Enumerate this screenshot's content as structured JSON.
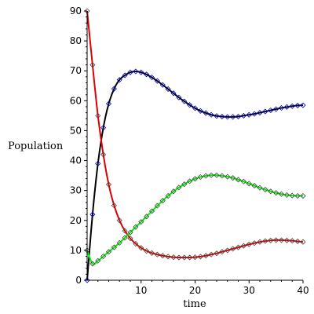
{
  "chart_data": {
    "type": "line",
    "title": "",
    "xlabel": "time",
    "ylabel": "Population",
    "xlim": [
      0,
      40
    ],
    "ylim": [
      0,
      90
    ],
    "xticks": [
      10,
      20,
      30,
      40
    ],
    "yticks": [
      0,
      10,
      20,
      30,
      40,
      50,
      60,
      70,
      80,
      90
    ],
    "grid": false,
    "legend": "none",
    "series": [
      {
        "color": "#000000",
        "marker_color": "#0000cc",
        "x": [
          0,
          1,
          2,
          3,
          4,
          5,
          6,
          7,
          8,
          9,
          10,
          11,
          12,
          13,
          14,
          15,
          16,
          17,
          18,
          19,
          20,
          21,
          22,
          23,
          24,
          25,
          26,
          27,
          28,
          29,
          30,
          31,
          32,
          33,
          34,
          35,
          36,
          37,
          38,
          39,
          40
        ],
        "y": [
          0,
          22,
          39,
          51,
          59,
          64,
          67,
          68.5,
          69.5,
          69.8,
          69.5,
          68.8,
          67.8,
          66.6,
          65.3,
          63.9,
          62.5,
          61.1,
          59.8,
          58.6,
          57.5,
          56.6,
          55.9,
          55.3,
          54.9,
          54.7,
          54.6,
          54.6,
          54.7,
          55.0,
          55.3,
          55.6,
          56.0,
          56.4,
          56.8,
          57.2,
          57.6,
          57.9,
          58.2,
          58.4,
          58.5
        ]
      },
      {
        "color": "#dd0000",
        "marker_color": "#444444",
        "x": [
          0,
          1,
          2,
          3,
          4,
          5,
          6,
          7,
          8,
          9,
          10,
          11,
          12,
          13,
          14,
          15,
          16,
          17,
          18,
          19,
          20,
          21,
          22,
          23,
          24,
          25,
          26,
          27,
          28,
          29,
          30,
          31,
          32,
          33,
          34,
          35,
          36,
          37,
          38,
          39,
          40
        ],
        "y": [
          90,
          72,
          55,
          42,
          32,
          25,
          20,
          16.5,
          14,
          12.2,
          10.8,
          9.8,
          9.1,
          8.6,
          8.2,
          7.9,
          7.7,
          7.6,
          7.6,
          7.6,
          7.7,
          7.9,
          8.2,
          8.6,
          9.0,
          9.5,
          10.0,
          10.5,
          11.0,
          11.5,
          12.0,
          12.4,
          12.8,
          13.1,
          13.3,
          13.4,
          13.4,
          13.3,
          13.2,
          13.0,
          12.8
        ]
      },
      {
        "color": "#00ee00",
        "marker_color": "#444444",
        "x": [
          0,
          1,
          2,
          3,
          4,
          5,
          6,
          7,
          8,
          9,
          10,
          11,
          12,
          13,
          14,
          15,
          16,
          17,
          18,
          19,
          20,
          21,
          22,
          23,
          24,
          25,
          26,
          27,
          28,
          29,
          30,
          31,
          32,
          33,
          34,
          35,
          36,
          37,
          38,
          39,
          40
        ],
        "y": [
          10,
          5.5,
          6.5,
          8,
          9.5,
          11,
          12.5,
          14.2,
          16,
          17.8,
          19.5,
          21.3,
          23.1,
          24.9,
          26.6,
          28.2,
          29.7,
          31.0,
          32.1,
          33.1,
          33.9,
          34.5,
          34.9,
          35.1,
          35.1,
          34.9,
          34.6,
          34.2,
          33.6,
          33.0,
          32.3,
          31.6,
          30.9,
          30.3,
          29.7,
          29.2,
          28.8,
          28.5,
          28.3,
          28.2,
          28.2
        ]
      }
    ]
  }
}
